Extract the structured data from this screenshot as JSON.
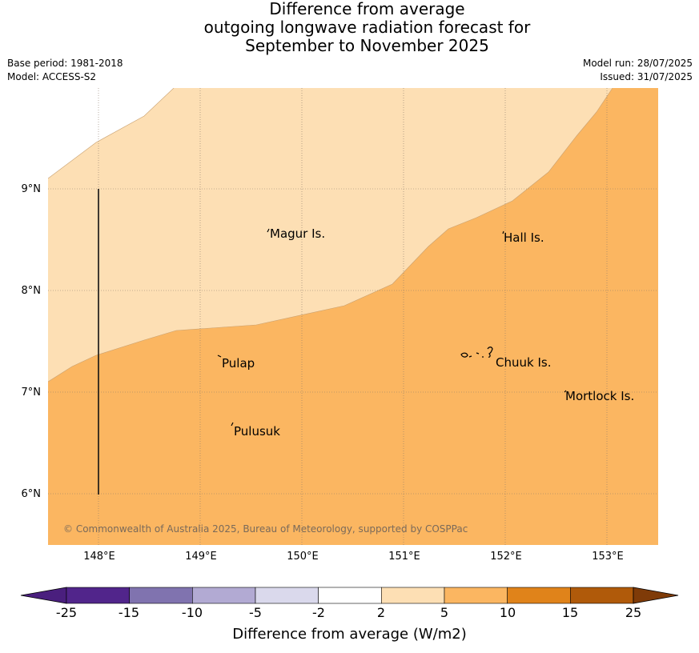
{
  "title": {
    "line1": "Difference from average",
    "line2": "outgoing longwave radiation forecast for",
    "line3": "September to November 2025"
  },
  "meta": {
    "base_period": "Base period: 1981-2018",
    "model": "Model: ACCESS-S2",
    "model_run": "Model run: 28/07/2025",
    "issued": "Issued: 31/07/2025"
  },
  "map": {
    "lat_labels": [
      "9°N",
      "8°N",
      "7°N",
      "6°N"
    ],
    "lon_labels": [
      "148°E",
      "149°E",
      "150°E",
      "151°E",
      "152°E",
      "153°E"
    ],
    "places": [
      {
        "name": "Magur Is.",
        "lat": 8.56,
        "lon": 149.66
      },
      {
        "name": "Hall Is.",
        "lat": 8.52,
        "lon": 151.97
      },
      {
        "name": "Pulap",
        "lat": 7.27,
        "lon": 149.21
      },
      {
        "name": "Chuuk Is.",
        "lat": 7.28,
        "lon": 151.88
      },
      {
        "name": "Mortlock Is.",
        "lat": 6.95,
        "lon": 152.62
      },
      {
        "name": "Pulusuk",
        "lat": 6.61,
        "lon": 149.33
      }
    ],
    "copyright": "© Commonwealth of Australia 2025, Bureau of Meteorology, supported by COSPPac"
  },
  "colorbar": {
    "labels": [
      "-25",
      "-15",
      "-10",
      "-5",
      "-2",
      "2",
      "5",
      "10",
      "15",
      "25"
    ],
    "colors": [
      "#4a1f7e",
      "#51258b",
      "#8073af",
      "#b2aad3",
      "#dad9ec",
      "#ffffff",
      "#fddfb4",
      "#fbb661",
      "#e0831a",
      "#b05a0a",
      "#7f3b08"
    ],
    "title": "Difference from average (W/m2)"
  }
}
